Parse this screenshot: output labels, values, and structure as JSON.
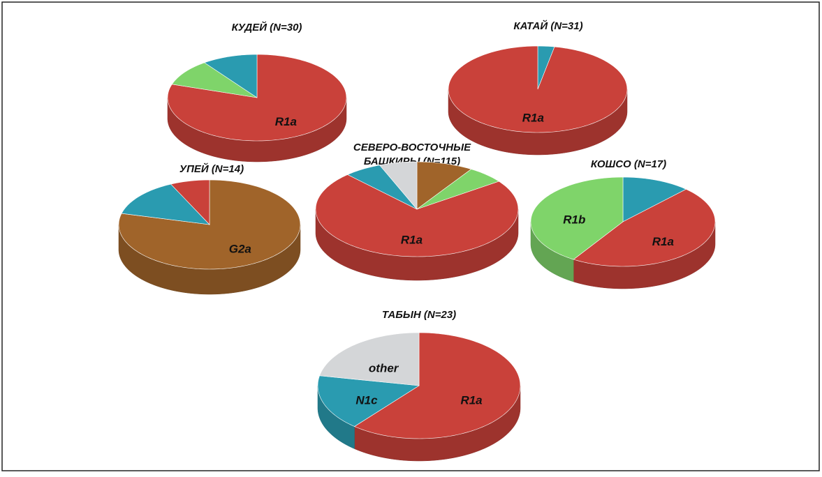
{
  "chart_data": [
    {
      "type": "pie",
      "title": "КУДЕЙ (N=30)",
      "categories": [
        "R1a",
        null,
        null
      ],
      "values": [
        80,
        10,
        10
      ],
      "colors": [
        "#c9413a",
        "#7fd46a",
        "#2a9bb0"
      ]
    },
    {
      "type": "pie",
      "title": "КАТАЙ (N=31)",
      "categories": [
        null,
        "R1a"
      ],
      "values": [
        3,
        97
      ],
      "colors": [
        "#2a9bb0",
        "#c9413a"
      ]
    },
    {
      "type": "pie",
      "title": "УПЕЙ (N=14)",
      "categories": [
        "G2a",
        null,
        null
      ],
      "values": [
        79,
        14,
        7
      ],
      "colors": [
        "#a0642a",
        "#2a9bb0",
        "#c9413a"
      ]
    },
    {
      "type": "pie",
      "title": "СЕВЕРО-ВОСТОЧНЫЕ\nБАШКИРЫ (N=115)",
      "categories": [
        null,
        null,
        "R1a",
        null,
        null
      ],
      "values": [
        9,
        6,
        73,
        6,
        6
      ],
      "colors": [
        "#a0642a",
        "#7fd46a",
        "#c9413a",
        "#2a9bb0",
        "#d4d6d8"
      ]
    },
    {
      "type": "pie",
      "title": "КОШСО (N=17)",
      "categories": [
        null,
        "R1a",
        "R1b"
      ],
      "values": [
        12,
        47,
        41
      ],
      "colors": [
        "#2a9bb0",
        "#c9413a",
        "#7fd46a"
      ]
    },
    {
      "type": "pie",
      "title": "ТАБЫН (N=23)",
      "categories": [
        "R1a",
        "N1c",
        "other"
      ],
      "values": [
        61,
        17,
        22
      ],
      "colors": [
        "#c9413a",
        "#2a9bb0",
        "#d4d6d8"
      ]
    }
  ]
}
